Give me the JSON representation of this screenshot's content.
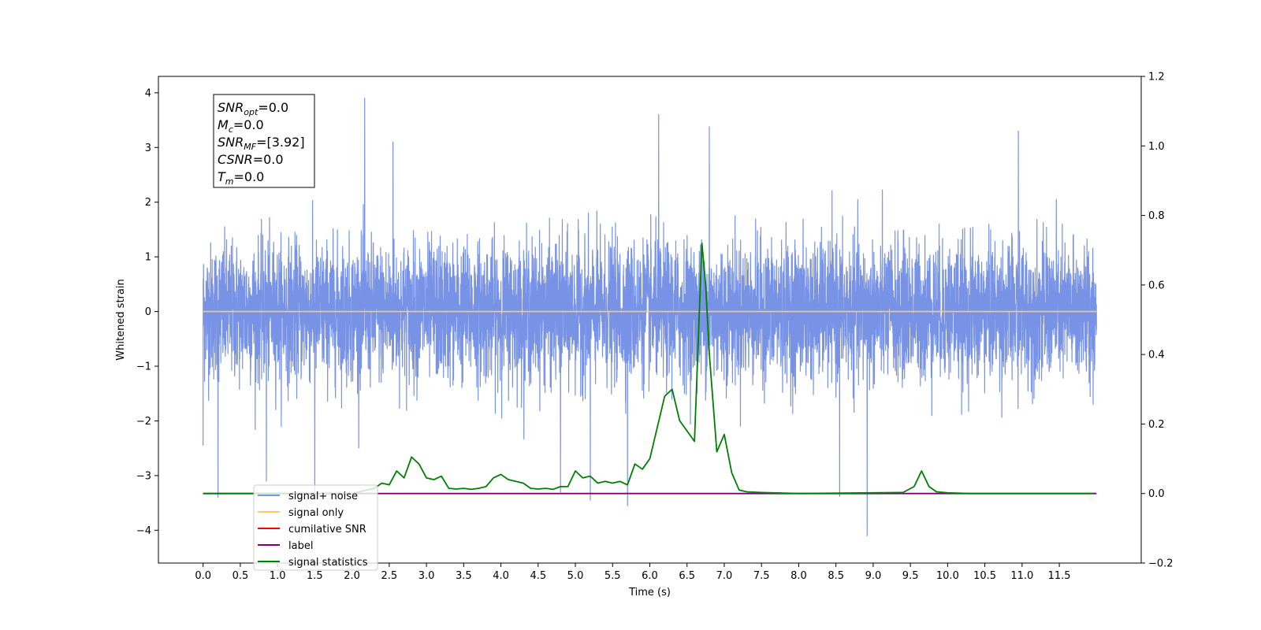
{
  "chart_data": {
    "type": "line",
    "title": "",
    "xlabel": "Time (s)",
    "ylabel": "Whitened strain",
    "ylabel_right": "",
    "xlim": [
      -0.6,
      12.6
    ],
    "ylim": [
      -4.6,
      4.3
    ],
    "ylim_right": [
      -0.2,
      1.2
    ],
    "x_ticks": [
      0.0,
      0.5,
      1.0,
      1.5,
      2.0,
      2.5,
      3.0,
      3.5,
      4.0,
      4.5,
      5.0,
      5.5,
      6.0,
      6.5,
      7.0,
      7.5,
      8.0,
      8.5,
      9.0,
      9.5,
      10.0,
      10.5,
      11.0,
      11.5
    ],
    "x_tick_labels": [
      "0.0",
      "0.5",
      "1.0",
      "1.5",
      "2.0",
      "2.5",
      "3.0",
      "3.5",
      "4.0",
      "4.5",
      "5.0",
      "5.5",
      "6.0",
      "6.5",
      "7.0",
      "7.5",
      "8.0",
      "8.5",
      "9.0",
      "9.5",
      "10.0",
      "10.5",
      "11.0",
      "11.5"
    ],
    "y_ticks": [
      -4,
      -3,
      -2,
      -1,
      0,
      1,
      2,
      3,
      4
    ],
    "y_tick_labels": [
      "−4",
      "−3",
      "−2",
      "−1",
      "0",
      "1",
      "2",
      "3",
      "4"
    ],
    "y_ticks_right": [
      -0.2,
      0.0,
      0.2,
      0.4,
      0.6,
      0.8,
      1.0,
      1.2
    ],
    "y_tick_labels_right": [
      "−0.2",
      "0.0",
      "0.2",
      "0.4",
      "0.6",
      "0.8",
      "1.0",
      "1.2"
    ],
    "grid": false,
    "legend_position": "lower-left",
    "annotation": {
      "lines": [
        {
          "main": "SNR",
          "sub": "opt",
          "rest": "=0.0"
        },
        {
          "main": "M",
          "sub": "c",
          "rest": "=0.0"
        },
        {
          "main": "SNR",
          "sub": "MF",
          "rest": "=[3.92]"
        },
        {
          "main": "CSNR",
          "sub": "",
          "rest": "=0.0"
        },
        {
          "main": "T",
          "sub": "m",
          "rest": "=0.0"
        }
      ]
    },
    "noise_envelope": {
      "x_range": [
        0.0,
        12.0
      ],
      "typical_range": [
        -1.5,
        1.5
      ],
      "peaks": [
        {
          "x": 0.0,
          "y": 1.1
        },
        {
          "x": 0.0,
          "y": -2.45
        },
        {
          "x": 0.2,
          "y": -3.4
        },
        {
          "x": 0.85,
          "y": -3.1
        },
        {
          "x": 1.5,
          "y": -3.3
        },
        {
          "x": 2.17,
          "y": 3.9
        },
        {
          "x": 2.55,
          "y": 3.1
        },
        {
          "x": 4.8,
          "y": -3.3
        },
        {
          "x": 5.2,
          "y": -3.45
        },
        {
          "x": 5.7,
          "y": -3.55
        },
        {
          "x": 6.12,
          "y": 3.6
        },
        {
          "x": 6.8,
          "y": 3.38
        },
        {
          "x": 8.55,
          "y": -3.38
        },
        {
          "x": 8.92,
          "y": -4.1
        },
        {
          "x": 10.95,
          "y": 3.3
        }
      ]
    },
    "series": [
      {
        "name": "signal+ noise",
        "color": "#7893e6",
        "axis": "left",
        "x": [],
        "y": []
      },
      {
        "name": "signal only",
        "color": "#ffc966",
        "axis": "left",
        "x": [
          0.0,
          12.0
        ],
        "y": [
          0.0,
          0.0
        ]
      },
      {
        "name": "cumilative SNR",
        "color": "#ff0000",
        "axis": "right",
        "x": [],
        "y": []
      },
      {
        "name": "label",
        "color": "#7f007f",
        "axis": "right",
        "x": [
          0.0,
          12.0
        ],
        "y": [
          0.0,
          0.0
        ]
      },
      {
        "name": "signal statistics",
        "color": "#008000",
        "axis": "right",
        "x": [
          0.0,
          1.5,
          2.0,
          2.1,
          2.2,
          2.3,
          2.4,
          2.5,
          2.6,
          2.7,
          2.8,
          2.9,
          3.0,
          3.1,
          3.2,
          3.3,
          3.4,
          3.5,
          3.6,
          3.7,
          3.8,
          3.9,
          4.0,
          4.1,
          4.2,
          4.3,
          4.4,
          4.5,
          4.6,
          4.7,
          4.8,
          4.9,
          5.0,
          5.1,
          5.2,
          5.3,
          5.4,
          5.5,
          5.6,
          5.7,
          5.8,
          5.9,
          6.0,
          6.1,
          6.2,
          6.3,
          6.4,
          6.5,
          6.6,
          6.7,
          6.75,
          6.8,
          6.9,
          7.0,
          7.1,
          7.2,
          7.3,
          7.5,
          8.0,
          9.0,
          9.4,
          9.55,
          9.65,
          9.75,
          9.85,
          10.0,
          10.3,
          11.0,
          11.95
        ],
        "y": [
          0.0,
          0.0,
          0.0,
          0.005,
          0.01,
          0.015,
          0.03,
          0.025,
          0.065,
          0.045,
          0.105,
          0.085,
          0.045,
          0.04,
          0.05,
          0.015,
          0.013,
          0.015,
          0.012,
          0.015,
          0.02,
          0.045,
          0.055,
          0.04,
          0.035,
          0.03,
          0.015,
          0.013,
          0.015,
          0.012,
          0.02,
          0.02,
          0.065,
          0.045,
          0.05,
          0.03,
          0.035,
          0.03,
          0.035,
          0.025,
          0.085,
          0.07,
          0.1,
          0.19,
          0.28,
          0.3,
          0.21,
          0.18,
          0.15,
          0.72,
          0.6,
          0.4,
          0.12,
          0.17,
          0.06,
          0.01,
          0.005,
          0.003,
          0.0,
          0.002,
          0.003,
          0.02,
          0.065,
          0.02,
          0.005,
          0.002,
          0.0,
          0.0,
          0.0
        ]
      }
    ]
  }
}
